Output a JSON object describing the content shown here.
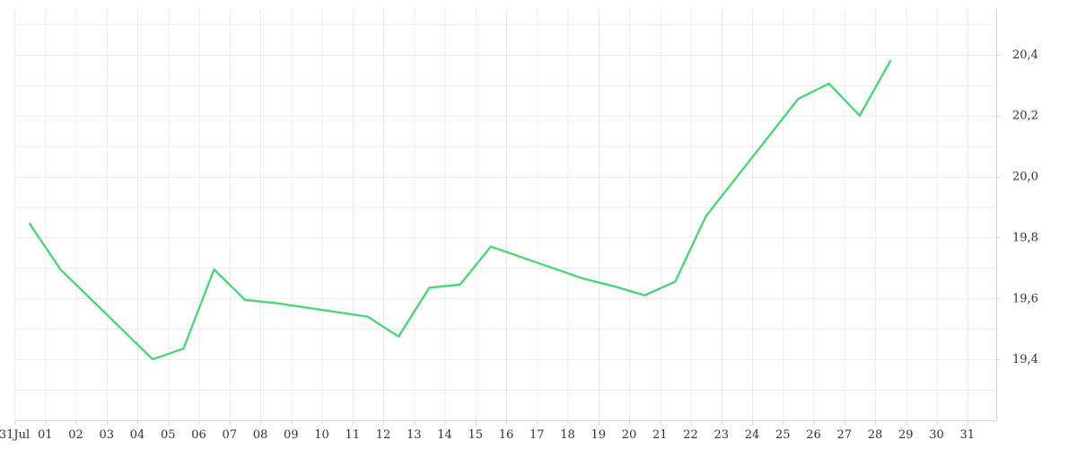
{
  "chart_data": {
    "type": "line",
    "x_tick_labels": [
      "31Jul",
      "01",
      "02",
      "03",
      "04",
      "05",
      "06",
      "07",
      "08",
      "09",
      "10",
      "11",
      "12",
      "13",
      "14",
      "15",
      "16",
      "17",
      "18",
      "19",
      "20",
      "21",
      "22",
      "23",
      "24",
      "25",
      "26",
      "27",
      "28",
      "29",
      "30",
      "31"
    ],
    "y_tick_labels": [
      "19,4",
      "19,6",
      "19,8",
      "20,0",
      "20,2",
      "20,4"
    ],
    "y_ticks": [
      19.4,
      19.6,
      19.8,
      20.0,
      20.2,
      20.4
    ],
    "ylim": [
      19.2,
      20.55
    ],
    "grid": true,
    "y_axis_position": "right",
    "series": [
      {
        "color": "#4fd47a",
        "x": [
          "2025-07-31T12",
          "2025-08-01T12",
          "2025-08-04T12",
          "2025-08-05T12",
          "2025-08-06T12",
          "2025-08-07T12",
          "2025-08-08T12",
          "2025-08-11T12",
          "2025-08-12T12",
          "2025-08-13T12",
          "2025-08-14T12",
          "2025-08-15T12",
          "2025-08-18T12",
          "2025-08-19T12",
          "2025-08-20T12",
          "2025-08-21T12",
          "2025-08-22T12",
          "2025-08-25T12",
          "2025-08-26T12",
          "2025-08-27T12",
          "2025-08-28T12"
        ],
        "values": [
          19.845,
          19.695,
          19.4,
          19.435,
          19.695,
          19.595,
          19.585,
          19.54,
          19.475,
          19.635,
          19.645,
          19.77,
          19.665,
          19.64,
          19.61,
          19.655,
          19.87,
          20.255,
          20.305,
          20.2,
          20.38
        ]
      }
    ]
  }
}
